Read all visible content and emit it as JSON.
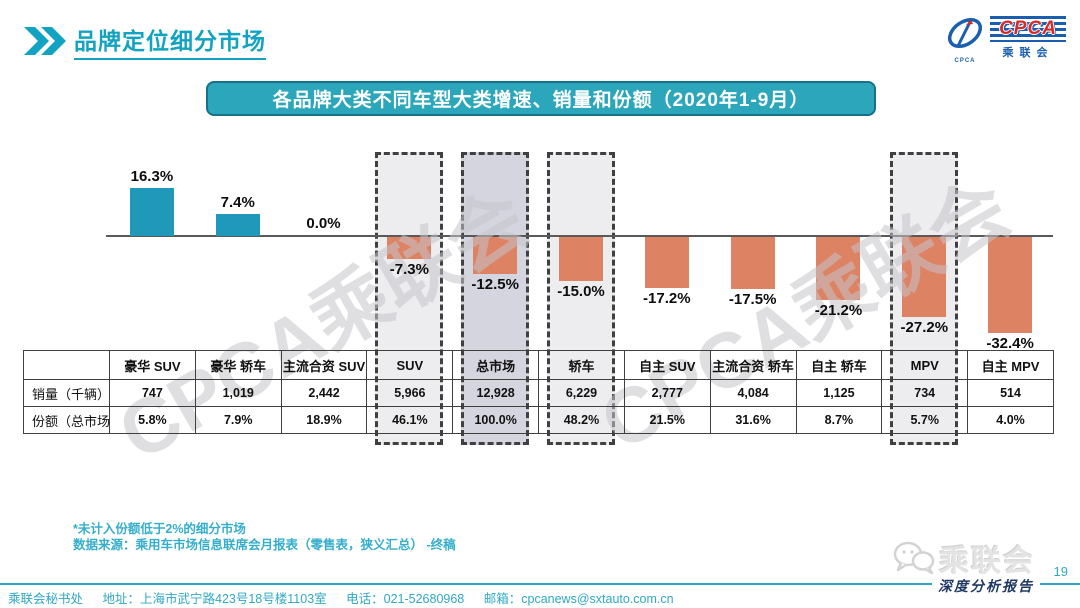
{
  "header": {
    "title": "品牌定位细分市场",
    "logo": {
      "cpca": "CPCA",
      "org": "乘联会",
      "emblem_sub": "CPCA"
    }
  },
  "banner": {
    "text": "各品牌大类不同车型大类增速、销量和份额（2020年1-9月）"
  },
  "chart_data": {
    "type": "bar",
    "title": "各品牌大类不同车型大类增速、销量和份额（2020年1-9月）",
    "categories": [
      "豪华 SUV",
      "豪华 轿车",
      "主流合资 SUV",
      "SUV",
      "总市场",
      "轿车",
      "自主 SUV",
      "主流合资 轿车",
      "自主 轿车",
      "MPV",
      "自主 MPV"
    ],
    "values": [
      16.3,
      7.4,
      0.0,
      -7.3,
      -12.5,
      -15.0,
      -17.2,
      -17.5,
      -21.2,
      -27.2,
      -32.4
    ],
    "unit": "%",
    "ylim": [
      -35,
      20
    ],
    "grid": false,
    "legend": "none",
    "positive_color": "#2098b9",
    "negative_color": "#de8264",
    "highlighted_columns": [
      {
        "index": 3,
        "fill": "#ededef"
      },
      {
        "index": 4,
        "fill": "#d5d5df"
      },
      {
        "index": 5,
        "fill": "#ededef"
      },
      {
        "index": 9,
        "fill": "#ededef"
      }
    ],
    "table": {
      "row_labels": [
        "销量（千辆）",
        "份额（总市场）"
      ],
      "rows": [
        [
          "747",
          "1,019",
          "2,442",
          "5,966",
          "12,928",
          "6,229",
          "2,777",
          "4,084",
          "1,125",
          "734",
          "514"
        ],
        [
          "5.8%",
          "7.9%",
          "18.9%",
          "46.1%",
          "100.0%",
          "48.2%",
          "21.5%",
          "31.6%",
          "8.7%",
          "5.7%",
          "4.0%"
        ]
      ]
    }
  },
  "watermark": {
    "text": "CPCA乘联会"
  },
  "footnotes": {
    "note1": "*未计入份额低于2%的细分市场",
    "note2": "数据来源：乘用车市场信息联席会月报表（零售表，狭义汇总）  -终稿"
  },
  "footer": {
    "org": "乘联会秘书处",
    "address": "地址：上海市武宁路423号18号楼1103室",
    "phone": "电话：021-52680968",
    "email": "邮箱：cpcanews@sxtauto.com.cn",
    "wechat_name": "乘联会",
    "report_label": "深度分析报告",
    "page": "19"
  }
}
